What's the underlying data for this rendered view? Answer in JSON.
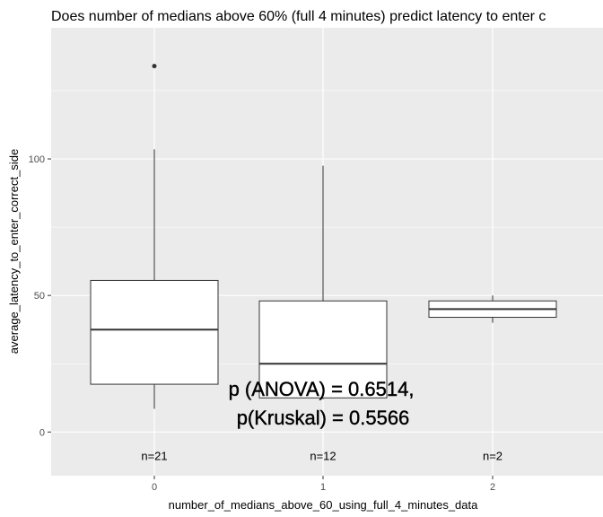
{
  "chart_data": {
    "type": "boxplot",
    "title": "Does number of medians above 60% (full 4 minutes) predict latency to enter c",
    "xlabel": "number_of_medians_above_60_using_full_4_minutes_data",
    "ylabel": "average_latency_to_enter_correct_side",
    "categories": [
      "0",
      "1",
      "2"
    ],
    "yticks": [
      0,
      50,
      100
    ],
    "ylim": [
      -16,
      148
    ],
    "boxes": [
      {
        "category": "0",
        "min": 8.5,
        "q1": 17.5,
        "median": 37.5,
        "q3": 55.5,
        "max": 103.5,
        "outliers": [
          134
        ]
      },
      {
        "category": "1",
        "min": 12,
        "q1": 12.5,
        "median": 25,
        "q3": 48,
        "max": 97.5,
        "outliers": []
      },
      {
        "category": "2",
        "min": 40,
        "q1": 42,
        "median": 45,
        "q3": 48,
        "max": 50,
        "outliers": []
      }
    ],
    "counts": [
      "n=21",
      "n=12",
      "n=2"
    ],
    "count_y": -9,
    "annotation_lines": [
      "p (ANOVA) = 0.6514,",
      "p(Kruskal) = 0.5566"
    ],
    "grid": true,
    "background_color": "#ebebeb",
    "grid_color": "#ffffff",
    "box_fill": "#ffffff",
    "line_color": "#333333"
  }
}
